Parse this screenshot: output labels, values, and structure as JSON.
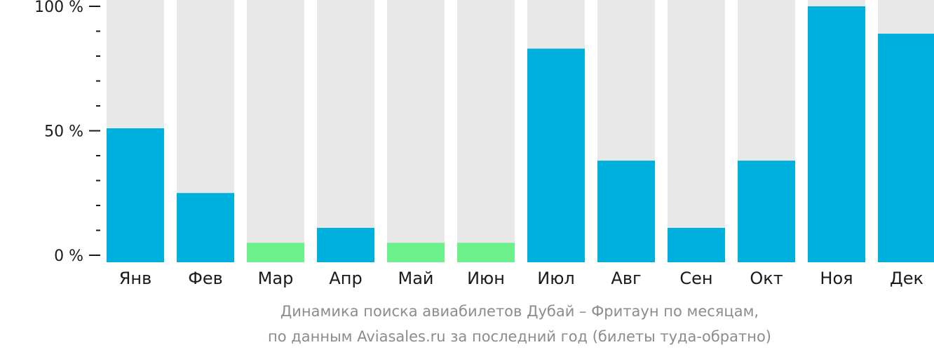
{
  "chart_data": {
    "type": "bar",
    "categories": [
      "Янв",
      "Фев",
      "Мар",
      "Апр",
      "Май",
      "Июн",
      "Июл",
      "Авг",
      "Сен",
      "Окт",
      "Ноя",
      "Дек"
    ],
    "values": [
      51,
      25,
      5,
      11,
      5,
      5,
      83,
      38,
      11,
      38,
      100,
      89
    ],
    "highlight": [
      false,
      false,
      true,
      false,
      true,
      true,
      false,
      false,
      false,
      false,
      false,
      false
    ],
    "ylim": [
      0,
      100
    ],
    "yticks": [
      {
        "value": 0,
        "label": "0 %"
      },
      {
        "value": 50,
        "label": "50 %"
      },
      {
        "value": 100,
        "label": "100 %"
      }
    ],
    "minor_tick_step": 10,
    "grid": false,
    "colors": {
      "bar": "#00b0dc",
      "bar_highlight": "#6cf08c",
      "background_bar": "#e8e8e8",
      "axis": "#1a1a1a"
    }
  },
  "caption": {
    "line1": "Динамика поиска авиабилетов Дубай – Фритаун по месяцам,",
    "line2": "по данным Aviasales.ru за последний год (билеты туда-обратно)"
  }
}
